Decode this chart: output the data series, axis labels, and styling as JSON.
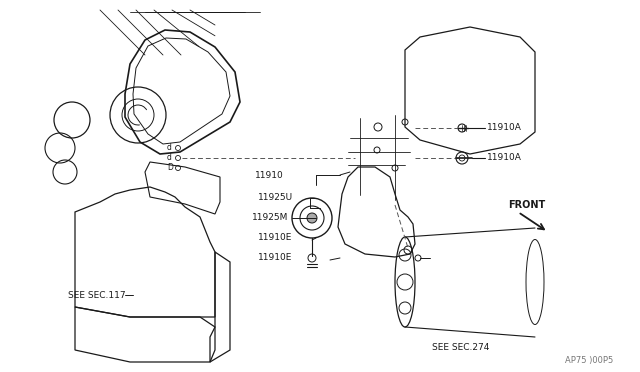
{
  "bg_color": "#ffffff",
  "line_color": "#1a1a1a",
  "dashed_color": "#555555",
  "watermark": "AP75 )00P5",
  "labels_11910A_1": "11910A",
  "labels_11910A_2": "11910A",
  "label_11910": "11910",
  "label_11925U": "11925U",
  "label_11925M": "11925M",
  "label_11910E_1": "11910E",
  "label_11910E_2": "11910E",
  "label_see117": "SEE SEC.117",
  "label_see274": "SEE SEC.274",
  "label_front": "FRONT"
}
